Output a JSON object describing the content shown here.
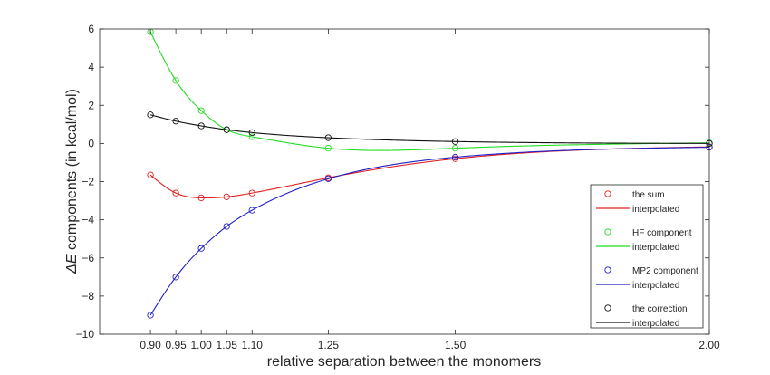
{
  "chart_data": {
    "type": "line",
    "title": "",
    "xlabel": "relative separation between the monomers",
    "ylabel_prefix": "ΔE",
    "ylabel_suffix": " components (in kcal/mol)",
    "xlim": [
      0.8,
      2.0
    ],
    "ylim": [
      -10,
      6
    ],
    "xticks": [
      0.9,
      0.95,
      1.0,
      1.05,
      1.1,
      1.25,
      1.5,
      2.0
    ],
    "xtick_labels": [
      "0.90",
      "0.95",
      "1.00",
      "1.05",
      "1.10",
      "1.25",
      "1.50",
      "2.00"
    ],
    "yticks": [
      -10,
      -8,
      -6,
      -4,
      -2,
      0,
      2,
      4,
      6
    ],
    "ytick_labels": [
      "−10",
      "−8",
      "−6",
      "−4",
      "−2",
      "0",
      "2",
      "4",
      "6"
    ],
    "grid": false,
    "legend_position": "bottom-right",
    "x": [
      0.9,
      0.95,
      1.0,
      1.05,
      1.1,
      1.25,
      1.5,
      2.0
    ],
    "series": [
      {
        "name": "the sum",
        "line_name": "interpolated",
        "color": "#e0201f",
        "values": [
          -1.65,
          -2.6,
          -2.85,
          -2.8,
          -2.6,
          -1.8,
          -0.8,
          -0.18
        ]
      },
      {
        "name": "HF component",
        "line_name": "interpolated",
        "color": "#22dd22",
        "values": [
          5.85,
          3.3,
          1.72,
          0.72,
          0.35,
          -0.25,
          -0.25,
          0.03
        ]
      },
      {
        "name": "MP2 component",
        "line_name": "interpolated",
        "color": "#2020c8",
        "values": [
          -9.0,
          -7.0,
          -5.5,
          -4.35,
          -3.5,
          -1.85,
          -0.72,
          -0.2
        ]
      },
      {
        "name": "the correction",
        "line_name": "interpolated",
        "color": "#111111",
        "values": [
          1.5,
          1.17,
          0.92,
          0.72,
          0.57,
          0.3,
          0.1,
          0.0
        ]
      }
    ]
  }
}
